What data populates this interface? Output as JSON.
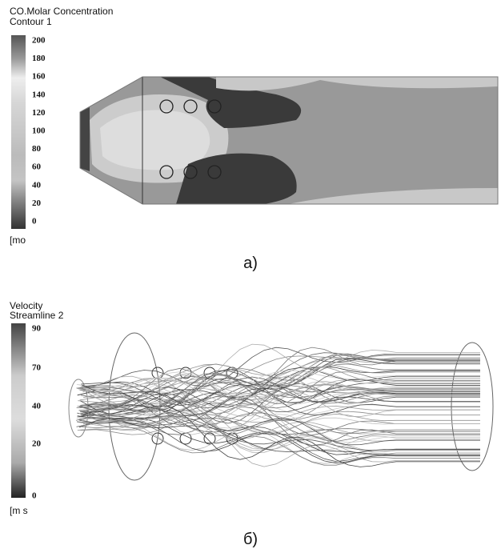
{
  "panel_a": {
    "title": "CO.Molar Concentration",
    "subtitle": "Contour 1",
    "legend_ticks": [
      200,
      180,
      160,
      140,
      120,
      100,
      80,
      60,
      40,
      20,
      0
    ],
    "unit": "[mo",
    "caption": "a)"
  },
  "panel_b": {
    "title": "Velocity",
    "subtitle": "Streamline 2",
    "legend_ticks": [
      90,
      70,
      40,
      20,
      0
    ],
    "unit": "[m s",
    "caption": "б)"
  }
}
